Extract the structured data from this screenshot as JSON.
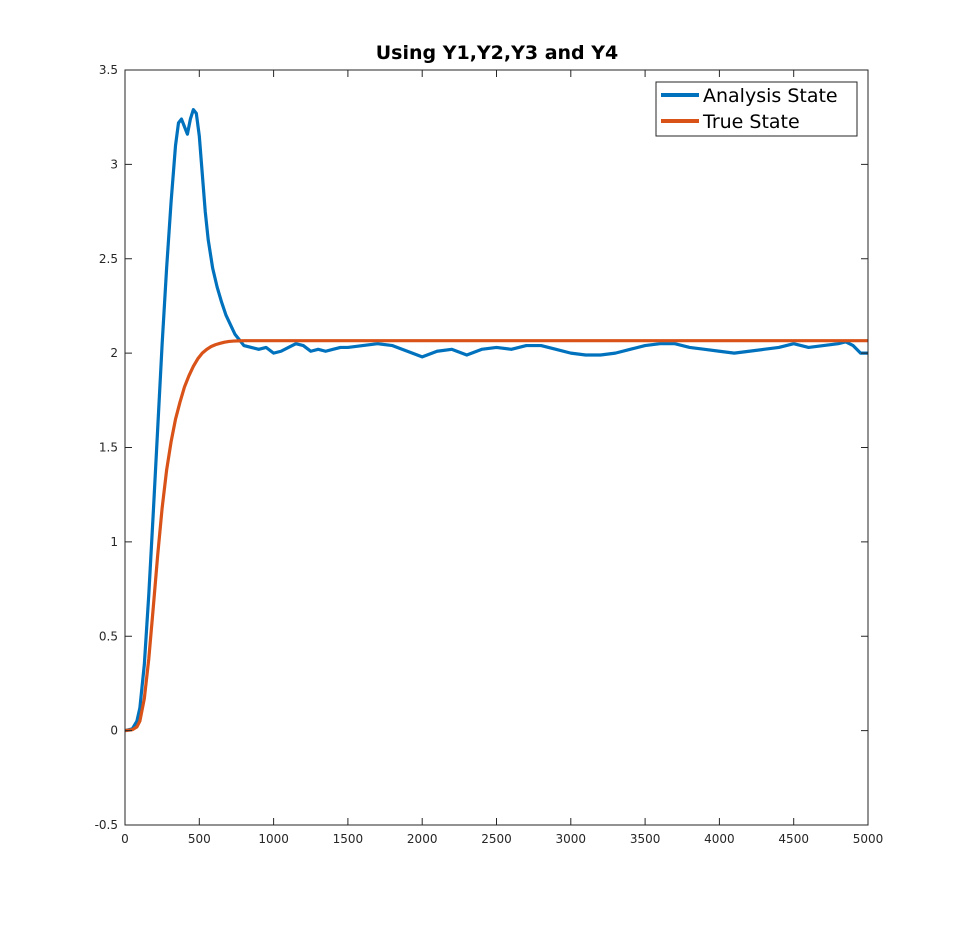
{
  "chart_data": {
    "type": "line",
    "title": "Using Y1,Y2,Y3 and Y4",
    "xlabel": "",
    "ylabel": "",
    "xlim": [
      0,
      5000
    ],
    "ylim": [
      -0.5,
      3.5
    ],
    "xticks": [
      0,
      500,
      1000,
      1500,
      2000,
      2500,
      3000,
      3500,
      4000,
      4500,
      5000
    ],
    "yticks": [
      -0.5,
      0,
      0.5,
      1,
      1.5,
      2,
      2.5,
      3,
      3.5
    ],
    "grid": false,
    "legend_position": "top-right",
    "series": [
      {
        "name": "Analysis State",
        "color": "#0072BD",
        "x": [
          0,
          50,
          80,
          100,
          130,
          160,
          190,
          220,
          250,
          280,
          310,
          340,
          360,
          380,
          400,
          420,
          440,
          460,
          480,
          500,
          520,
          540,
          560,
          590,
          620,
          650,
          680,
          710,
          740,
          770,
          800,
          850,
          900,
          950,
          1000,
          1050,
          1100,
          1150,
          1200,
          1250,
          1300,
          1350,
          1400,
          1450,
          1500,
          1600,
          1700,
          1800,
          1900,
          2000,
          2100,
          2200,
          2300,
          2400,
          2500,
          2600,
          2700,
          2800,
          2900,
          3000,
          3100,
          3200,
          3300,
          3400,
          3500,
          3600,
          3700,
          3800,
          3900,
          4000,
          4100,
          4200,
          4300,
          4400,
          4500,
          4600,
          4700,
          4800,
          4850,
          4900,
          4950,
          5000
        ],
        "y": [
          0,
          0.01,
          0.05,
          0.12,
          0.35,
          0.72,
          1.15,
          1.6,
          2.05,
          2.45,
          2.8,
          3.1,
          3.22,
          3.24,
          3.2,
          3.16,
          3.24,
          3.29,
          3.27,
          3.15,
          2.95,
          2.75,
          2.6,
          2.45,
          2.35,
          2.27,
          2.2,
          2.15,
          2.1,
          2.07,
          2.04,
          2.03,
          2.02,
          2.03,
          2.0,
          2.01,
          2.03,
          2.05,
          2.04,
          2.01,
          2.02,
          2.01,
          2.02,
          2.03,
          2.03,
          2.04,
          2.05,
          2.04,
          2.01,
          1.98,
          2.01,
          2.02,
          1.99,
          2.02,
          2.03,
          2.02,
          2.04,
          2.04,
          2.02,
          2.0,
          1.99,
          1.99,
          2.0,
          2.02,
          2.04,
          2.05,
          2.05,
          2.03,
          2.02,
          2.01,
          2.0,
          2.01,
          2.02,
          2.03,
          2.05,
          2.03,
          2.04,
          2.05,
          2.06,
          2.04,
          2.0,
          2.0
        ]
      },
      {
        "name": "True State",
        "color": "#D95319",
        "x": [
          0,
          50,
          80,
          100,
          130,
          160,
          190,
          220,
          250,
          280,
          310,
          340,
          370,
          400,
          430,
          460,
          490,
          520,
          550,
          580,
          610,
          640,
          670,
          700,
          730,
          760,
          800,
          900,
          1000,
          2000,
          3000,
          4000,
          5000
        ],
        "y": [
          0,
          0.005,
          0.02,
          0.05,
          0.17,
          0.38,
          0.65,
          0.93,
          1.18,
          1.38,
          1.53,
          1.65,
          1.74,
          1.82,
          1.88,
          1.93,
          1.97,
          2.0,
          2.02,
          2.035,
          2.045,
          2.052,
          2.058,
          2.062,
          2.064,
          2.065,
          2.066,
          2.066,
          2.066,
          2.066,
          2.066,
          2.066,
          2.066
        ]
      }
    ]
  }
}
